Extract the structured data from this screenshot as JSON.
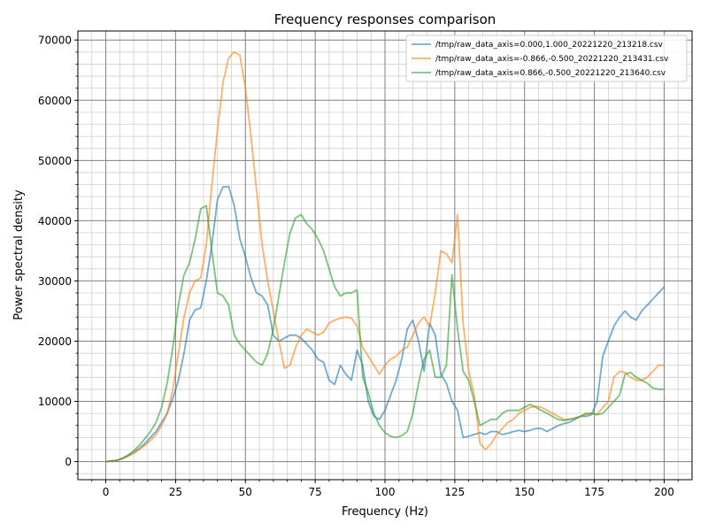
{
  "chart_data": {
    "type": "line",
    "title": "Frequency responses comparison",
    "xlabel": "Frequency (Hz)",
    "ylabel": "Power spectral density",
    "xlim": [
      -10,
      210
    ],
    "ylim": [
      -3000,
      71500
    ],
    "xticks": [
      0,
      25,
      50,
      75,
      100,
      125,
      150,
      175,
      200
    ],
    "yticks": [
      0,
      10000,
      20000,
      30000,
      40000,
      50000,
      60000,
      70000
    ],
    "grid": "major and minor",
    "legend_position": "top-right",
    "series": [
      {
        "name": "/tmp/raw_data_axis=0.000,1.000_20221220_213218.csv",
        "color": "#1f77b4",
        "x": [
          0,
          2,
          4,
          6,
          8,
          10,
          12,
          14,
          16,
          18,
          20,
          22,
          24,
          26,
          28,
          30,
          32,
          34,
          36,
          38,
          40,
          42,
          44,
          46,
          48,
          50,
          52,
          54,
          56,
          58,
          60,
          62,
          64,
          66,
          68,
          70,
          72,
          74,
          76,
          78,
          80,
          82,
          84,
          86,
          88,
          90,
          92,
          94,
          96,
          98,
          100,
          102,
          104,
          106,
          108,
          110,
          112,
          114,
          116,
          118,
          120,
          122,
          124,
          126,
          128,
          130,
          132,
          134,
          136,
          138,
          140,
          142,
          144,
          146,
          148,
          150,
          152,
          154,
          156,
          158,
          160,
          162,
          164,
          166,
          168,
          170,
          172,
          174,
          176,
          178,
          180,
          182,
          184,
          186,
          188,
          190,
          192,
          194,
          196,
          198,
          200
        ],
        "y": [
          0,
          100,
          200,
          500,
          1000,
          1500,
          2200,
          3000,
          4000,
          5000,
          6500,
          8000,
          10500,
          13500,
          18000,
          23500,
          25200,
          25500,
          30000,
          36000,
          43500,
          45600,
          45700,
          42500,
          37000,
          34000,
          30500,
          28000,
          27500,
          26000,
          21000,
          20000,
          20500,
          21000,
          21000,
          20500,
          19500,
          18500,
          17000,
          16500,
          13500,
          12800,
          16000,
          14500,
          13500,
          18500,
          16000,
          10000,
          7500,
          7000,
          8500,
          11000,
          13500,
          17000,
          22000,
          23500,
          20000,
          15000,
          23000,
          21000,
          14500,
          13000,
          10000,
          8500,
          4000,
          4200,
          4500,
          4800,
          4500,
          5000,
          5000,
          4500,
          4700,
          5000,
          5200,
          5000,
          5200,
          5500,
          5500,
          5000,
          5500,
          6000,
          6300,
          6500,
          7000,
          7500,
          7500,
          7800,
          10000,
          17500,
          20000,
          22500,
          24000,
          25000,
          24000,
          23500,
          25000,
          26000,
          27000,
          28000,
          29000
        ],
        "x_start_note": ""
      },
      {
        "name": "/tmp/raw_data_axis=-0.866,-0.500_20221220_213431.csv",
        "color": "#ff7f0e",
        "x": [
          0,
          2,
          4,
          6,
          8,
          10,
          12,
          14,
          16,
          18,
          20,
          22,
          24,
          26,
          28,
          30,
          32,
          34,
          36,
          38,
          40,
          42,
          44,
          46,
          48,
          50,
          52,
          54,
          56,
          58,
          60,
          62,
          64,
          66,
          68,
          70,
          72,
          74,
          76,
          78,
          80,
          82,
          84,
          86,
          88,
          90,
          92,
          94,
          96,
          98,
          100,
          102,
          104,
          106,
          108,
          110,
          112,
          114,
          116,
          118,
          120,
          122,
          124,
          126,
          128,
          130,
          132,
          134,
          136,
          138,
          140,
          142,
          144,
          146,
          148,
          150,
          152,
          154,
          156,
          158,
          160,
          162,
          164,
          166,
          168,
          170,
          172,
          174,
          176,
          178,
          180,
          182,
          184,
          186,
          188,
          190,
          192,
          194,
          196,
          198,
          200
        ],
        "y": [
          0,
          100,
          200,
          500,
          900,
          1400,
          2000,
          2700,
          3500,
          4500,
          6000,
          8000,
          12000,
          18000,
          24000,
          28000,
          30000,
          30500,
          36000,
          46000,
          55000,
          63000,
          67000,
          68000,
          67500,
          62000,
          54000,
          45000,
          36000,
          30000,
          25000,
          20000,
          15500,
          16000,
          19000,
          21000,
          22000,
          21500,
          21000,
          21500,
          23000,
          23500,
          23800,
          24000,
          23800,
          22500,
          19000,
          17500,
          16000,
          14500,
          16000,
          17000,
          17500,
          18500,
          19000,
          21000,
          23000,
          24000,
          22500,
          28000,
          35000,
          34500,
          33000,
          41000,
          23000,
          15000,
          11000,
          3000,
          2000,
          3000,
          4500,
          5500,
          6500,
          7000,
          8000,
          8500,
          9000,
          9200,
          9000,
          8500,
          8000,
          7500,
          7000,
          7000,
          7200,
          7500,
          7800,
          8000,
          7800,
          9000,
          10000,
          14000,
          15000,
          14800,
          14000,
          13500,
          13500,
          14000,
          15000,
          16000,
          16000
        ],
        "x_start_note": ""
      },
      {
        "name": "/tmp/raw_data_axis=0.866,-0.500_20221220_213640.csv",
        "color": "#2ca02c",
        "x": [
          0,
          2,
          4,
          6,
          8,
          10,
          12,
          14,
          16,
          18,
          20,
          22,
          24,
          26,
          28,
          30,
          32,
          34,
          36,
          38,
          40,
          42,
          44,
          46,
          48,
          50,
          52,
          54,
          56,
          58,
          60,
          62,
          64,
          66,
          68,
          70,
          72,
          74,
          76,
          78,
          80,
          82,
          84,
          86,
          88,
          90,
          92,
          94,
          96,
          98,
          100,
          102,
          104,
          106,
          108,
          110,
          112,
          114,
          116,
          118,
          120,
          122,
          124,
          126,
          128,
          130,
          132,
          134,
          136,
          138,
          140,
          142,
          144,
          146,
          148,
          150,
          152,
          154,
          156,
          158,
          160,
          162,
          164,
          166,
          168,
          170,
          172,
          174,
          176,
          178,
          180,
          182,
          184,
          186,
          188,
          190,
          192,
          194,
          196,
          198,
          200
        ],
        "y": [
          0,
          100,
          200,
          600,
          1100,
          1800,
          2700,
          3800,
          5000,
          6500,
          9000,
          13000,
          19000,
          26000,
          31000,
          33000,
          37000,
          42000,
          42500,
          35000,
          28000,
          27500,
          26000,
          21000,
          19500,
          18500,
          17500,
          16500,
          16000,
          18000,
          22000,
          27500,
          33000,
          38000,
          40500,
          41000,
          39500,
          38500,
          37000,
          35000,
          32000,
          29000,
          27500,
          28000,
          28000,
          28500,
          14000,
          11500,
          8000,
          6000,
          4800,
          4200,
          4000,
          4300,
          5000,
          8000,
          13000,
          17000,
          18500,
          14000,
          14000,
          16000,
          31000,
          22000,
          15000,
          13500,
          10000,
          6000,
          6500,
          7000,
          7000,
          8000,
          8500,
          8500,
          8500,
          9000,
          9500,
          9000,
          8500,
          8000,
          7500,
          7000,
          6800,
          7000,
          7200,
          7500,
          8000,
          8000,
          7800,
          8000,
          9000,
          10000,
          11000,
          14500,
          14800,
          14000,
          13500,
          13000,
          12200,
          12000,
          12000
        ],
        "x_start_note": ""
      }
    ]
  }
}
